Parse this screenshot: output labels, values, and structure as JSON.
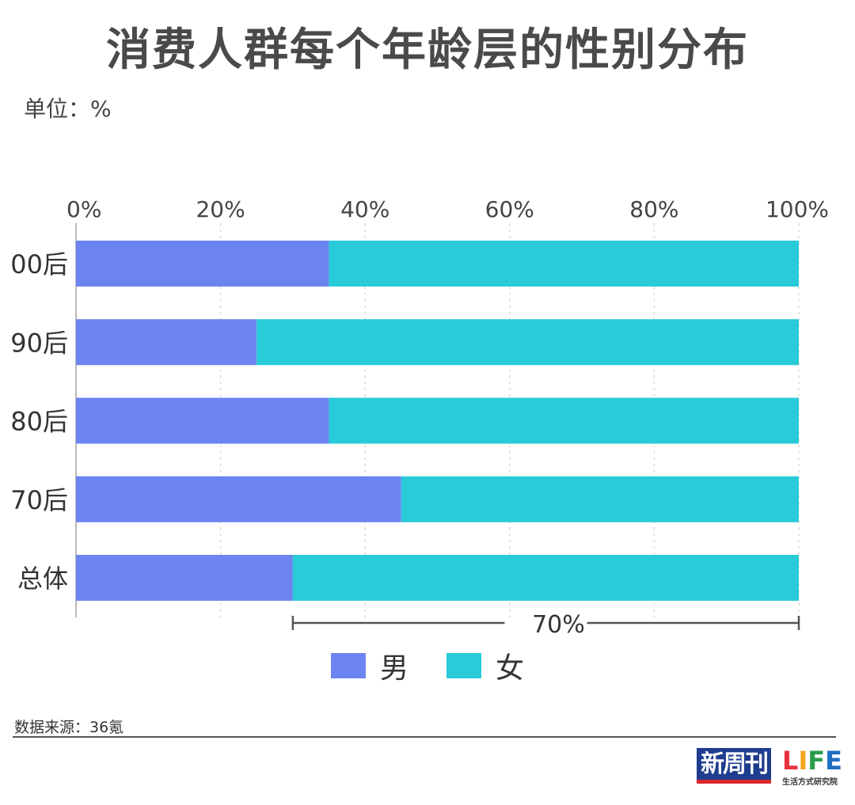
{
  "header": {
    "title": "消费人群每个年龄层的性别分布",
    "unit": "单位：%"
  },
  "chart_data": {
    "type": "bar",
    "orientation": "horizontal",
    "stacked": true,
    "categories": [
      "00后",
      "90后",
      "80后",
      "70后",
      "总体"
    ],
    "series": [
      {
        "name": "男",
        "values": [
          35,
          25,
          35,
          45,
          30
        ],
        "color": "#6c84ef"
      },
      {
        "name": "女",
        "values": [
          65,
          75,
          65,
          55,
          70
        ],
        "color": "#29cbd8"
      }
    ],
    "x_ticks": [
      "0%",
      "20%",
      "40%",
      "60%",
      "80%",
      "100%"
    ],
    "xlim": [
      0,
      100
    ],
    "grid": true,
    "legend_position": "bottom-center",
    "annotation": {
      "label": "70%",
      "from": 30,
      "to": 100
    }
  },
  "footer": {
    "source": "数据来源：36氪",
    "logo_text": "新周刊",
    "logo_life": "LIFE",
    "logo_life_sub": "生活方式研究院"
  }
}
